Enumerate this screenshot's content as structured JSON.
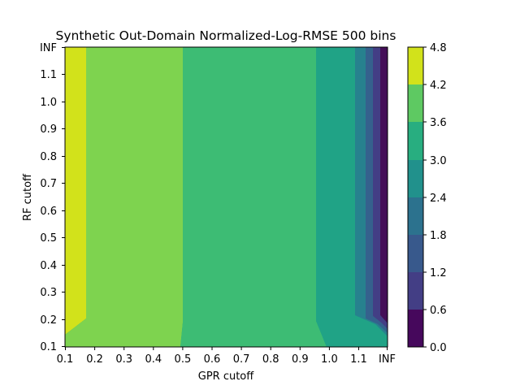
{
  "chart_data": {
    "type": "heatmap",
    "title": "Synthetic Out-Domain Normalized-Log-RMSE 500 bins",
    "xlabel": "GPR cutoff",
    "ylabel": "RF cutoff",
    "x_ticks": [
      "0.1",
      "0.2",
      "0.3",
      "0.4",
      "0.5",
      "0.6",
      "0.7",
      "0.8",
      "0.9",
      "1.0",
      "1.1",
      "INF"
    ],
    "y_ticks": [
      "0.1",
      "0.2",
      "0.3",
      "0.4",
      "0.5",
      "0.6",
      "0.7",
      "0.8",
      "0.9",
      "1.0",
      "1.1",
      "INF"
    ],
    "colorbar": {
      "levels": [
        "0.0",
        "0.6",
        "1.2",
        "1.8",
        "2.4",
        "3.0",
        "3.6",
        "4.2",
        "4.8"
      ],
      "colors": [
        "#46085c",
        "#433e85",
        "#38598c",
        "#2c728e",
        "#21918c",
        "#28ae80",
        "#5ec962",
        "#addc30",
        "#d2e21b"
      ]
    },
    "bands": [
      {
        "level_range": [
          4.2,
          4.8
        ],
        "color": "#d2e21b",
        "x_range": [
          0.1,
          0.17
        ]
      },
      {
        "level_range": [
          3.6,
          4.2
        ],
        "color": "#7ed34f",
        "x_range": [
          0.17,
          0.5
        ]
      },
      {
        "level_range": [
          3.0,
          3.6
        ],
        "color": "#3dbc74",
        "x_range": [
          0.5,
          0.96
        ]
      },
      {
        "level_range": [
          2.4,
          3.0
        ],
        "color": "#20a386",
        "x_range": [
          0.96,
          1.1
        ]
      },
      {
        "level_range": [
          1.8,
          2.4
        ],
        "color": "#27818e",
        "x_range": [
          1.1,
          1.14
        ]
      },
      {
        "level_range": [
          1.2,
          1.8
        ],
        "color": "#35618d",
        "x_range": [
          1.14,
          1.18
        ]
      },
      {
        "level_range": [
          0.6,
          1.2
        ],
        "color": "#433e85",
        "x_range": [
          1.18,
          1.23
        ]
      },
      {
        "level_range": [
          0.0,
          0.6
        ],
        "color": "#440f58",
        "x_range": [
          1.23,
          1.26
        ]
      }
    ]
  }
}
